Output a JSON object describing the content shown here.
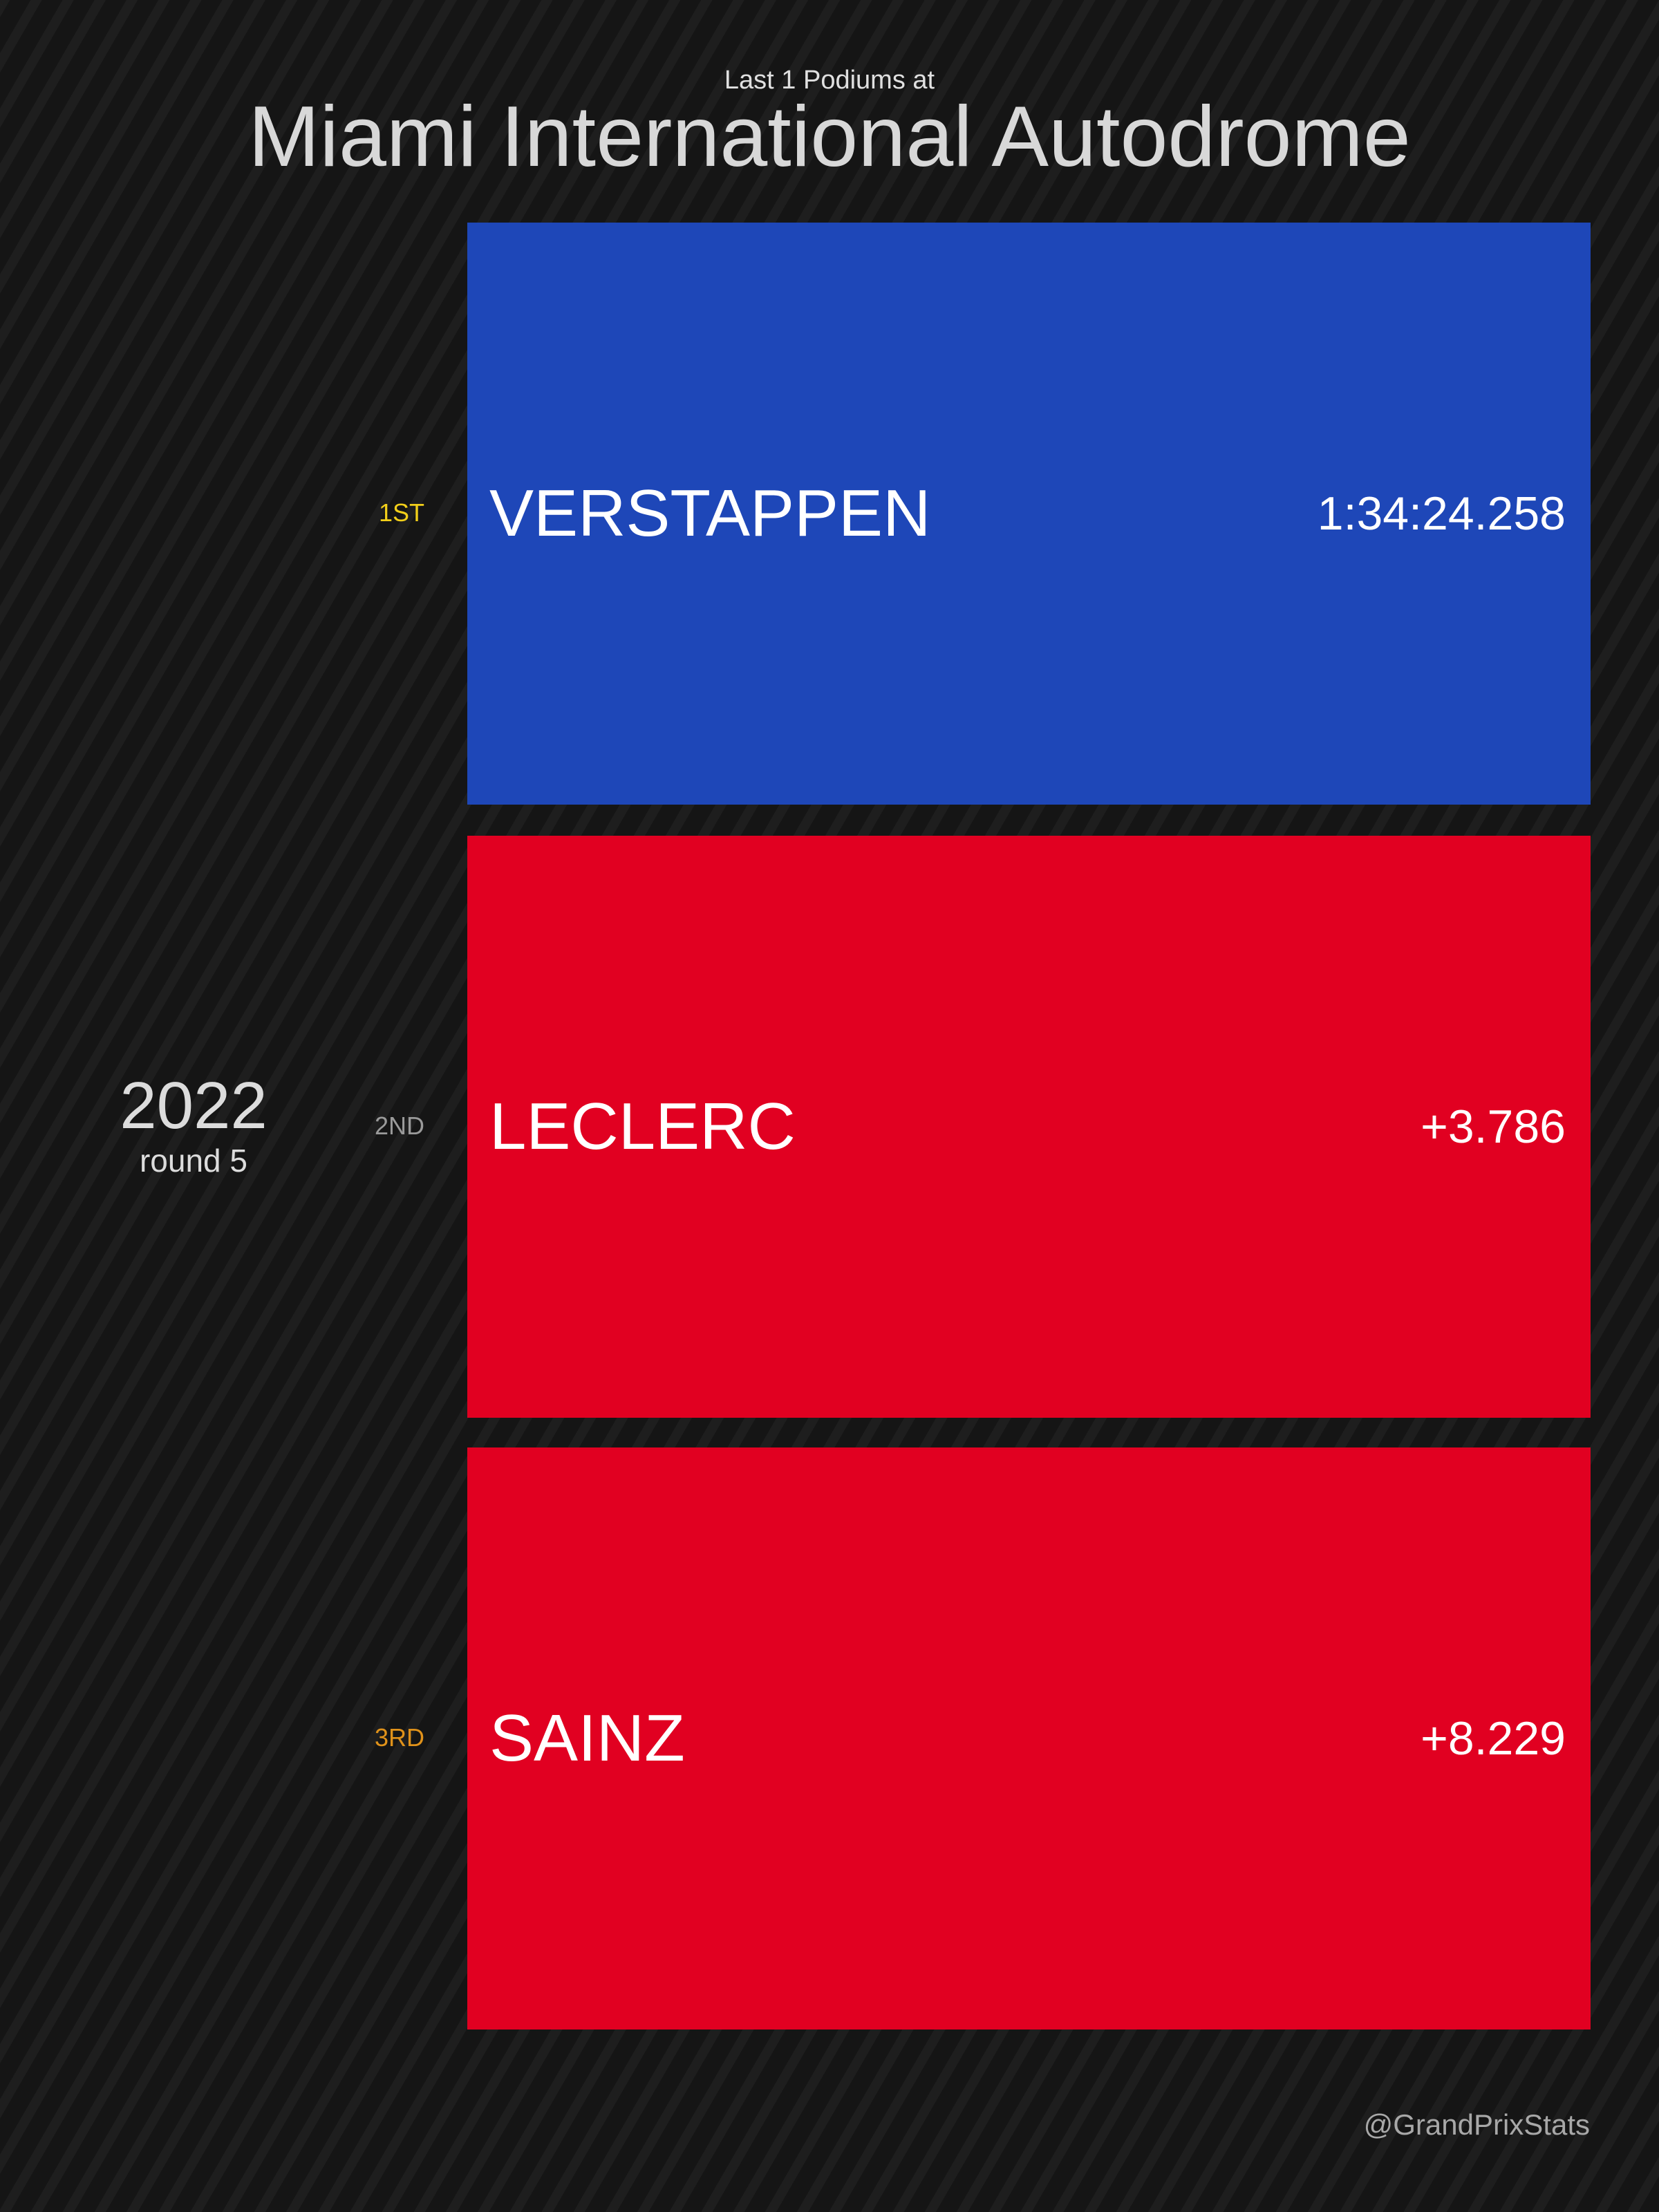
{
  "header": {
    "subtitle": "Last 1 Podiums at",
    "title": "Miami International Autodrome"
  },
  "race": {
    "year": "2022",
    "round": "round 5"
  },
  "podium": [
    {
      "position": "1ST",
      "driver": "VERSTAPPEN",
      "time": "1:34:24.258",
      "bar_color": "#1e47b8",
      "position_color": "#f2cf1a"
    },
    {
      "position": "2ND",
      "driver": "LECLERC",
      "time": "+3.786",
      "bar_color": "#e10021",
      "position_color": "#9a9a9a"
    },
    {
      "position": "3RD",
      "driver": "SAINZ",
      "time": "+8.229",
      "bar_color": "#e10021",
      "position_color": "#e0921a"
    }
  ],
  "footer": {
    "credit": "@GrandPrixStats"
  }
}
